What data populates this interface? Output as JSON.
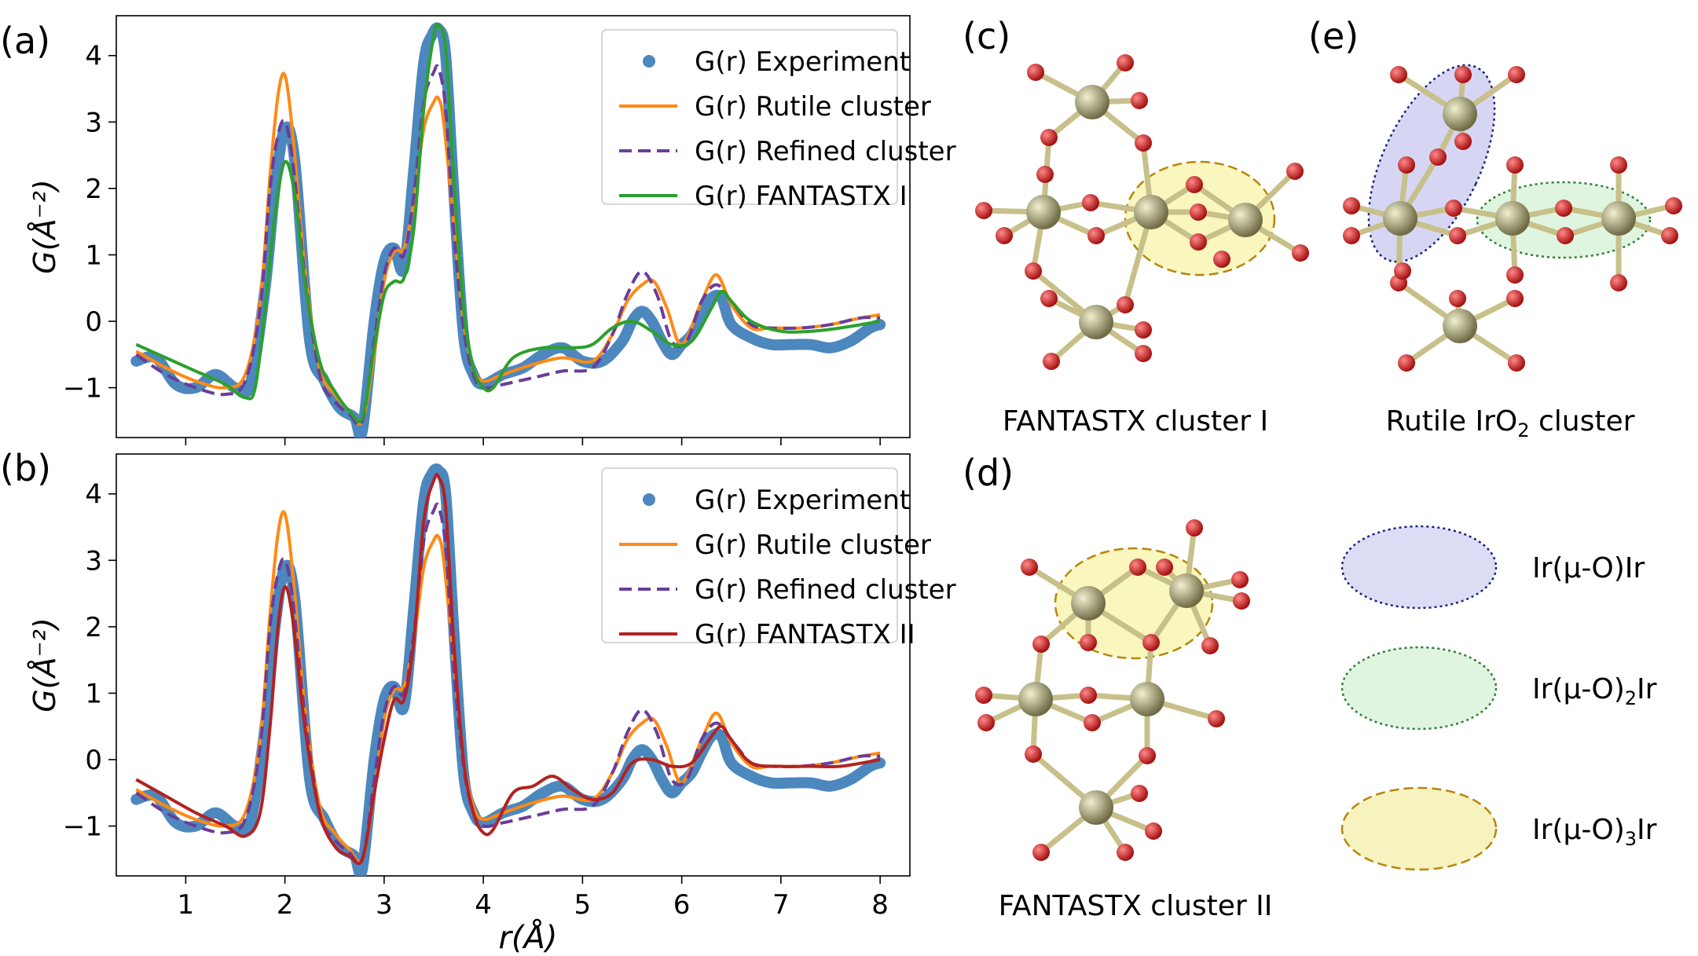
{
  "chart_data": [
    {
      "type": "line",
      "panel_label": "(a)",
      "xlabel": "r(Å)",
      "ylabel": "G(Å⁻²)",
      "xlim": [
        0.3,
        8.3
      ],
      "ylim": [
        -1.75,
        4.6
      ],
      "xticks": [
        "1",
        "2",
        "3",
        "4",
        "5",
        "6",
        "7",
        "8"
      ],
      "yticks": [
        "−1",
        "0",
        "1",
        "2",
        "3",
        "4"
      ],
      "legend_position": "top-right",
      "series": [
        {
          "name": "G(r) Experiment",
          "color": "#4c87be",
          "style": "dots",
          "x": [
            0.5,
            0.7,
            0.9,
            1.1,
            1.3,
            1.5,
            1.65,
            1.8,
            1.9,
            2.0,
            2.1,
            2.25,
            2.4,
            2.55,
            2.7,
            2.78,
            2.9,
            3.0,
            3.1,
            3.2,
            3.3,
            3.4,
            3.48,
            3.55,
            3.62,
            3.7,
            3.8,
            3.9,
            4.0,
            4.2,
            4.4,
            4.6,
            4.8,
            5.0,
            5.2,
            5.4,
            5.5,
            5.6,
            5.7,
            5.8,
            5.9,
            6.0,
            6.1,
            6.2,
            6.3,
            6.4,
            6.5,
            6.7,
            6.9,
            7.1,
            7.3,
            7.5,
            7.7,
            7.9,
            8.0
          ],
          "y": [
            -0.6,
            -0.55,
            -0.95,
            -1.0,
            -0.8,
            -1.0,
            -0.95,
            0.5,
            2.0,
            2.9,
            2.4,
            -0.3,
            -0.9,
            -1.3,
            -1.45,
            -1.65,
            0.0,
            0.9,
            1.1,
            0.8,
            2.3,
            3.9,
            4.3,
            4.4,
            4.0,
            2.0,
            -0.2,
            -0.8,
            -0.95,
            -0.8,
            -0.7,
            -0.5,
            -0.4,
            -0.6,
            -0.6,
            -0.3,
            0.0,
            0.15,
            0.0,
            -0.3,
            -0.5,
            -0.35,
            -0.2,
            0.1,
            0.35,
            0.35,
            -0.05,
            -0.25,
            -0.35,
            -0.35,
            -0.35,
            -0.4,
            -0.3,
            -0.1,
            -0.05
          ]
        },
        {
          "name": "G(r) Rutile cluster",
          "color": "#ff8a14",
          "style": "solid",
          "x": [
            0.5,
            0.8,
            1.1,
            1.4,
            1.6,
            1.75,
            1.85,
            1.93,
            2.0,
            2.08,
            2.2,
            2.35,
            2.5,
            2.65,
            2.78,
            2.9,
            3.0,
            3.1,
            3.2,
            3.3,
            3.4,
            3.5,
            3.55,
            3.6,
            3.7,
            3.8,
            3.9,
            4.0,
            4.2,
            4.5,
            4.8,
            5.1,
            5.3,
            5.45,
            5.6,
            5.72,
            5.85,
            6.0,
            6.2,
            6.35,
            6.5,
            6.7,
            6.9,
            7.2,
            7.5,
            7.8,
            8.0
          ],
          "y": [
            -0.45,
            -0.7,
            -0.9,
            -1.0,
            -0.8,
            0.3,
            2.2,
            3.4,
            3.7,
            2.8,
            0.8,
            -0.7,
            -1.1,
            -1.35,
            -1.5,
            -0.5,
            0.6,
            1.05,
            1.1,
            1.8,
            2.9,
            3.3,
            3.35,
            3.0,
            1.5,
            0.0,
            -0.7,
            -0.9,
            -0.8,
            -0.65,
            -0.55,
            -0.6,
            -0.2,
            0.3,
            0.55,
            0.6,
            0.2,
            -0.35,
            0.3,
            0.7,
            0.25,
            -0.1,
            -0.1,
            -0.1,
            -0.05,
            0.05,
            0.1
          ]
        },
        {
          "name": "G(r) Refined cluster",
          "color": "#6a3d9a",
          "style": "dashed",
          "x": [
            0.5,
            0.8,
            1.1,
            1.4,
            1.6,
            1.75,
            1.85,
            1.93,
            2.0,
            2.08,
            2.2,
            2.35,
            2.5,
            2.65,
            2.78,
            2.9,
            3.0,
            3.1,
            3.2,
            3.3,
            3.4,
            3.5,
            3.55,
            3.62,
            3.7,
            3.8,
            3.9,
            4.0,
            4.2,
            4.5,
            4.8,
            5.1,
            5.3,
            5.45,
            5.6,
            5.75,
            5.9,
            6.05,
            6.2,
            6.35,
            6.5,
            6.7,
            6.9,
            7.2,
            7.5,
            7.8,
            8.0
          ],
          "y": [
            -0.5,
            -0.8,
            -1.0,
            -1.1,
            -0.9,
            0.2,
            2.0,
            2.8,
            3.0,
            2.4,
            0.7,
            -0.8,
            -1.2,
            -1.4,
            -1.5,
            -0.3,
            0.7,
            1.1,
            1.0,
            1.9,
            3.3,
            3.75,
            3.8,
            3.2,
            1.4,
            -0.1,
            -0.8,
            -1.0,
            -0.95,
            -0.85,
            -0.75,
            -0.7,
            -0.2,
            0.4,
            0.75,
            0.4,
            -0.3,
            -0.3,
            0.3,
            0.55,
            0.3,
            -0.05,
            -0.1,
            -0.1,
            -0.05,
            0.05,
            0.05
          ]
        },
        {
          "name": "G(r) FANTASTX I",
          "color": "#2ca02c",
          "style": "solid",
          "x": [
            0.5,
            0.8,
            1.1,
            1.4,
            1.6,
            1.7,
            1.8,
            1.9,
            2.0,
            2.1,
            2.2,
            2.35,
            2.5,
            2.65,
            2.78,
            2.9,
            3.0,
            3.1,
            3.2,
            3.3,
            3.4,
            3.5,
            3.55,
            3.62,
            3.7,
            3.8,
            3.9,
            4.0,
            4.1,
            4.3,
            4.6,
            4.9,
            5.1,
            5.3,
            5.5,
            5.7,
            5.9,
            6.1,
            6.3,
            6.4,
            6.5,
            6.7,
            7.0,
            7.3,
            7.6,
            8.0
          ],
          "y": [
            -0.35,
            -0.55,
            -0.75,
            -0.95,
            -1.15,
            -1.0,
            0.2,
            1.6,
            2.4,
            1.9,
            0.6,
            -0.6,
            -1.05,
            -1.35,
            -1.45,
            -0.4,
            0.4,
            0.6,
            0.65,
            1.4,
            3.2,
            4.3,
            4.45,
            4.1,
            2.2,
            0.2,
            -0.7,
            -1.0,
            -1.0,
            -0.55,
            -0.4,
            -0.4,
            -0.35,
            -0.1,
            0.0,
            -0.15,
            -0.35,
            -0.3,
            0.2,
            0.45,
            0.3,
            0.0,
            -0.15,
            -0.15,
            -0.1,
            0.0
          ]
        }
      ]
    },
    {
      "type": "line",
      "panel_label": "(b)",
      "xlabel": "r(Å)",
      "ylabel": "G(Å⁻²)",
      "xlim": [
        0.3,
        8.3
      ],
      "ylim": [
        -1.75,
        4.6
      ],
      "xticks": [
        "1",
        "2",
        "3",
        "4",
        "5",
        "6",
        "7",
        "8"
      ],
      "yticks": [
        "−1",
        "0",
        "1",
        "2",
        "3",
        "4"
      ],
      "legend_position": "top-right",
      "series": [
        {
          "name": "G(r) Experiment",
          "color": "#4c87be",
          "style": "dots",
          "x": [
            0.5,
            0.7,
            0.9,
            1.1,
            1.3,
            1.5,
            1.65,
            1.8,
            1.9,
            2.0,
            2.1,
            2.25,
            2.4,
            2.55,
            2.7,
            2.78,
            2.9,
            3.0,
            3.1,
            3.2,
            3.3,
            3.4,
            3.48,
            3.55,
            3.62,
            3.7,
            3.8,
            3.9,
            4.0,
            4.2,
            4.4,
            4.6,
            4.8,
            5.0,
            5.2,
            5.4,
            5.5,
            5.6,
            5.7,
            5.8,
            5.9,
            6.0,
            6.1,
            6.2,
            6.3,
            6.4,
            6.5,
            6.7,
            6.9,
            7.1,
            7.3,
            7.5,
            7.7,
            7.9,
            8.0
          ],
          "y": [
            -0.6,
            -0.55,
            -0.95,
            -1.0,
            -0.8,
            -1.0,
            -0.95,
            0.5,
            2.0,
            2.9,
            2.4,
            -0.3,
            -0.9,
            -1.3,
            -1.45,
            -1.65,
            0.0,
            0.9,
            1.1,
            0.8,
            2.3,
            3.9,
            4.3,
            4.35,
            4.0,
            2.0,
            -0.2,
            -0.8,
            -0.95,
            -0.8,
            -0.7,
            -0.5,
            -0.4,
            -0.6,
            -0.6,
            -0.3,
            0.0,
            0.15,
            0.0,
            -0.3,
            -0.5,
            -0.35,
            -0.2,
            0.1,
            0.35,
            0.35,
            -0.05,
            -0.25,
            -0.35,
            -0.35,
            -0.35,
            -0.4,
            -0.3,
            -0.1,
            -0.05
          ]
        },
        {
          "name": "G(r) Rutile cluster",
          "color": "#ff8a14",
          "style": "solid",
          "x": [
            0.5,
            0.8,
            1.1,
            1.4,
            1.6,
            1.75,
            1.85,
            1.93,
            2.0,
            2.08,
            2.2,
            2.35,
            2.5,
            2.65,
            2.78,
            2.9,
            3.0,
            3.1,
            3.2,
            3.3,
            3.4,
            3.5,
            3.55,
            3.6,
            3.7,
            3.8,
            3.9,
            4.0,
            4.2,
            4.5,
            4.8,
            5.1,
            5.3,
            5.45,
            5.6,
            5.72,
            5.85,
            6.0,
            6.2,
            6.35,
            6.5,
            6.7,
            6.9,
            7.2,
            7.5,
            7.8,
            8.0
          ],
          "y": [
            -0.45,
            -0.7,
            -0.9,
            -1.0,
            -0.8,
            0.3,
            2.2,
            3.4,
            3.7,
            2.8,
            0.8,
            -0.7,
            -1.1,
            -1.35,
            -1.5,
            -0.5,
            0.6,
            1.05,
            1.1,
            1.8,
            2.9,
            3.3,
            3.35,
            3.0,
            1.5,
            0.0,
            -0.7,
            -0.9,
            -0.8,
            -0.65,
            -0.55,
            -0.6,
            -0.2,
            0.3,
            0.55,
            0.6,
            0.2,
            -0.35,
            0.3,
            0.7,
            0.25,
            -0.1,
            -0.1,
            -0.1,
            -0.05,
            0.05,
            0.1
          ]
        },
        {
          "name": "G(r) Refined cluster",
          "color": "#6a3d9a",
          "style": "dashed",
          "x": [
            0.5,
            0.8,
            1.1,
            1.4,
            1.6,
            1.75,
            1.85,
            1.93,
            2.0,
            2.08,
            2.2,
            2.35,
            2.5,
            2.65,
            2.78,
            2.9,
            3.0,
            3.1,
            3.2,
            3.3,
            3.4,
            3.5,
            3.55,
            3.62,
            3.7,
            3.8,
            3.9,
            4.0,
            4.2,
            4.5,
            4.8,
            5.1,
            5.3,
            5.45,
            5.6,
            5.75,
            5.9,
            6.05,
            6.2,
            6.35,
            6.5,
            6.7,
            6.9,
            7.2,
            7.5,
            7.8,
            8.0
          ],
          "y": [
            -0.5,
            -0.8,
            -1.0,
            -1.1,
            -0.9,
            0.2,
            2.0,
            2.8,
            3.0,
            2.4,
            0.7,
            -0.8,
            -1.2,
            -1.4,
            -1.5,
            -0.3,
            0.7,
            1.1,
            1.0,
            1.9,
            3.3,
            3.75,
            3.8,
            3.2,
            1.4,
            -0.1,
            -0.8,
            -1.0,
            -0.95,
            -0.85,
            -0.75,
            -0.7,
            -0.2,
            0.4,
            0.75,
            0.4,
            -0.3,
            -0.3,
            0.3,
            0.55,
            0.3,
            -0.05,
            -0.1,
            -0.1,
            -0.05,
            0.05,
            0.05
          ]
        },
        {
          "name": "G(r) FANTASTX II",
          "color": "#b22222",
          "style": "solid",
          "x": [
            0.5,
            0.8,
            1.1,
            1.4,
            1.6,
            1.75,
            1.85,
            1.93,
            2.0,
            2.08,
            2.2,
            2.35,
            2.5,
            2.65,
            2.78,
            2.9,
            3.0,
            3.1,
            3.2,
            3.3,
            3.4,
            3.5,
            3.55,
            3.62,
            3.7,
            3.8,
            3.9,
            4.0,
            4.1,
            4.3,
            4.5,
            4.7,
            4.9,
            5.1,
            5.3,
            5.5,
            5.7,
            5.9,
            6.1,
            6.3,
            6.4,
            6.5,
            6.7,
            7.0,
            7.3,
            7.6,
            8.0
          ],
          "y": [
            -0.3,
            -0.55,
            -0.8,
            -1.0,
            -1.15,
            -0.8,
            0.5,
            2.0,
            2.6,
            2.1,
            0.5,
            -0.8,
            -1.3,
            -1.45,
            -1.5,
            -0.5,
            0.3,
            0.9,
            0.9,
            1.8,
            3.6,
            4.2,
            4.25,
            3.8,
            1.8,
            0.0,
            -0.8,
            -1.1,
            -1.05,
            -0.5,
            -0.4,
            -0.25,
            -0.45,
            -0.6,
            -0.5,
            -0.05,
            0.0,
            -0.1,
            -0.05,
            0.35,
            0.5,
            0.3,
            -0.05,
            -0.1,
            -0.1,
            -0.1,
            0.0
          ]
        }
      ]
    }
  ],
  "structures": {
    "c_label": "(c)",
    "c_caption": "FANTASTX cluster I",
    "e_label": "(e)",
    "e_caption_main": "Rutile IrO",
    "e_caption_sub": "2",
    "e_caption_tail": " cluster",
    "d_label": "(d)",
    "d_caption": "FANTASTX cluster II",
    "atom_colors": {
      "ir": "#a8a47a",
      "o": "#d41f1f",
      "bond": "#c8c08a"
    }
  },
  "key": {
    "items": [
      {
        "label_main": "Ir(μ-O)Ir",
        "label_sub": "",
        "label_tail": "",
        "fill": "#dcdcf5",
        "stroke": "#1a237e",
        "dash": "dotted"
      },
      {
        "label_main": "Ir(μ-O)",
        "label_sub": "2",
        "label_tail": "Ir",
        "fill": "#dff5df",
        "stroke": "#2e7d32",
        "dash": "dotted"
      },
      {
        "label_main": "Ir(μ-O)",
        "label_sub": "3",
        "label_tail": "Ir",
        "fill": "#f7f3c0",
        "stroke": "#b8860b",
        "dash": "dashed"
      }
    ]
  }
}
